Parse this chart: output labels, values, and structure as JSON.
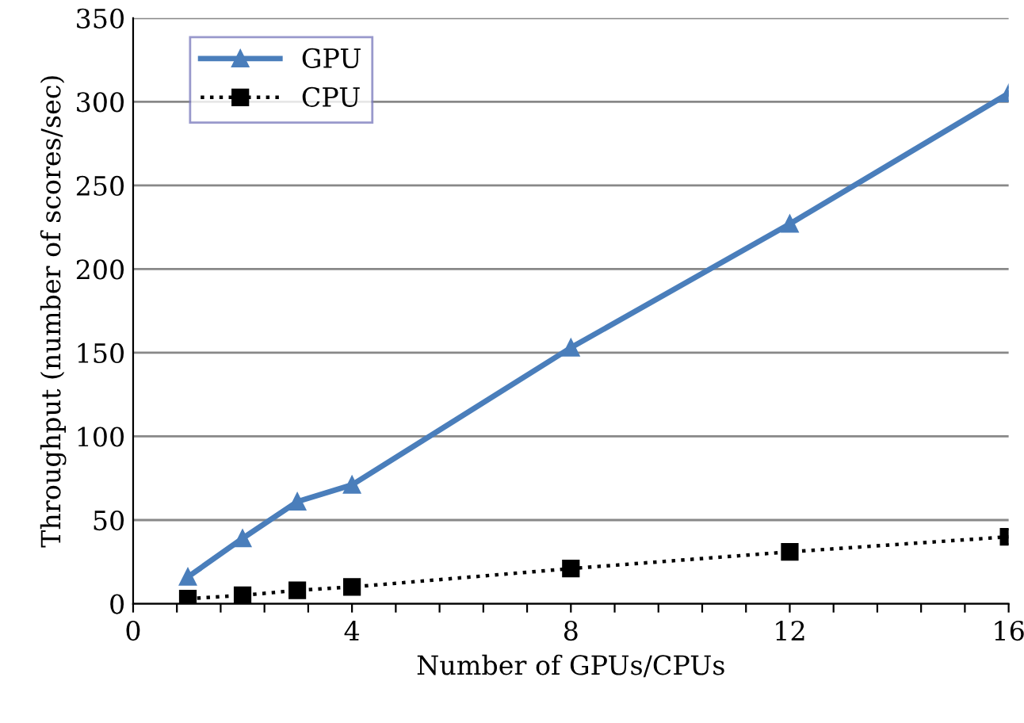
{
  "chart_data": {
    "type": "line",
    "xlabel": "Number of GPUs/CPUs",
    "ylabel": "Throughput (number of scores/sec)",
    "x": [
      1,
      2,
      3,
      4,
      8,
      12,
      16
    ],
    "series": [
      {
        "name": "GPU",
        "color": "#4a7ebb",
        "values": [
          16,
          39,
          61,
          71,
          153,
          227,
          305
        ],
        "marker": "triangle",
        "line_style": "solid"
      },
      {
        "name": "CPU",
        "color": "#000000",
        "values": [
          3,
          5,
          8,
          10,
          21,
          31,
          40
        ],
        "marker": "square",
        "line_style": "dotted"
      }
    ],
    "xlim": [
      0,
      16
    ],
    "ylim": [
      0,
      350
    ],
    "xticks": [
      0,
      {
        "value": 0.8,
        "label": null
      },
      {
        "value": 1.6,
        "label": null
      },
      {
        "value": 2.4,
        "label": null
      },
      {
        "value": 3.2,
        "label": null
      },
      4,
      {
        "value": 4.8,
        "label": null
      },
      {
        "value": 5.6,
        "label": null
      },
      {
        "value": 6.4,
        "label": null
      },
      {
        "value": 7.2,
        "label": null
      },
      8,
      {
        "value": 8.8,
        "label": null
      },
      {
        "value": 9.6,
        "label": null
      },
      {
        "value": 10.4,
        "label": null
      },
      {
        "value": 11.2,
        "label": null
      },
      12,
      {
        "value": 12.8,
        "label": null
      },
      {
        "value": 13.6,
        "label": null
      },
      {
        "value": 14.4,
        "label": null
      },
      {
        "value": 15.2,
        "label": null
      },
      16
    ],
    "yticks": [
      0,
      50,
      100,
      150,
      200,
      250,
      300,
      350
    ],
    "grid": "y",
    "legend": "top left"
  }
}
